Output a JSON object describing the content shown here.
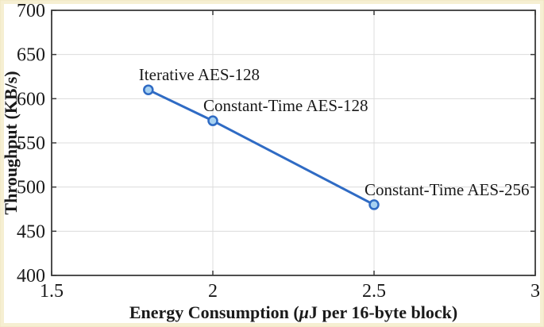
{
  "figure": {
    "frame_color": "#F6EFD2",
    "frame_edge_color": "#EDE4BE",
    "background": "#FFFFFF"
  },
  "chart_data": {
    "type": "line",
    "title": "",
    "xlabel": "Energy Consumption (μJ per 16-byte block)",
    "ylabel": "Throughput (KB/s)",
    "xlim": [
      1.5,
      3
    ],
    "ylim": [
      400,
      700
    ],
    "xticks": [
      1.5,
      2,
      2.5,
      3
    ],
    "yticks": [
      400,
      450,
      500,
      550,
      600,
      650,
      700
    ],
    "grid": true,
    "legend_position": "none",
    "series": [
      {
        "color": "#2F6BC4",
        "marker": "circle",
        "marker_fill": "#A7D1F1",
        "points": [
          {
            "x": 1.8,
            "y": 610,
            "label": "Iterative AES-128"
          },
          {
            "x": 2.0,
            "y": 575,
            "label": "Constant-Time AES-128"
          },
          {
            "x": 2.5,
            "y": 480,
            "label": "Constant-Time AES-256"
          }
        ]
      }
    ],
    "colors": {
      "grid": "#DCDCDC",
      "axis_box": "#3A3A3A",
      "text": "#1A1A1A"
    }
  }
}
